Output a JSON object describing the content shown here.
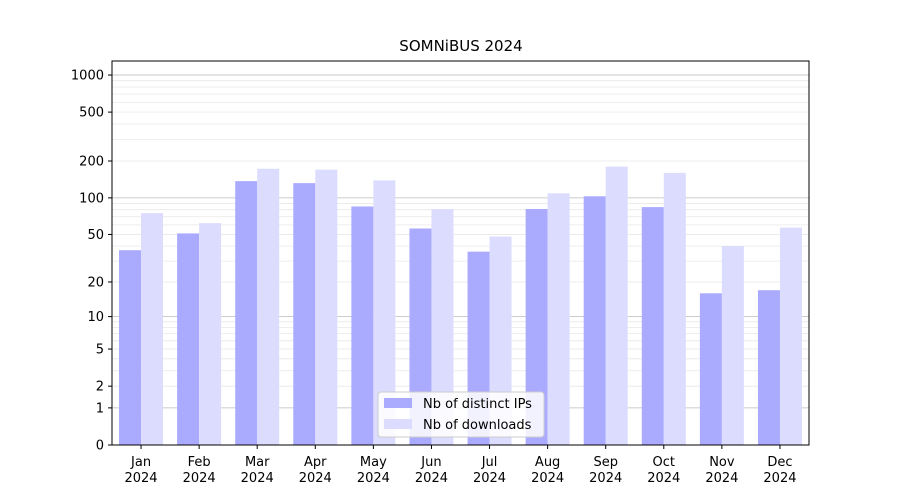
{
  "chart_data": {
    "type": "bar",
    "title": "SOMNiBUS 2024",
    "xlabel": "",
    "ylabel": "",
    "yscale": "symlog",
    "ylim": [
      0,
      1300
    ],
    "yticks": [
      0,
      1,
      2,
      5,
      10,
      20,
      50,
      100,
      200,
      500,
      1000
    ],
    "grid": true,
    "legend_position": "bottom-center",
    "categories": [
      [
        "Jan",
        "2024"
      ],
      [
        "Feb",
        "2024"
      ],
      [
        "Mar",
        "2024"
      ],
      [
        "Apr",
        "2024"
      ],
      [
        "May",
        "2024"
      ],
      [
        "Jun",
        "2024"
      ],
      [
        "Jul",
        "2024"
      ],
      [
        "Aug",
        "2024"
      ],
      [
        "Sep",
        "2024"
      ],
      [
        "Oct",
        "2024"
      ],
      [
        "Nov",
        "2024"
      ],
      [
        "Dec",
        "2024"
      ]
    ],
    "series": [
      {
        "name": "Nb of distinct IPs",
        "color": "#aaaaff",
        "values": [
          37,
          51,
          137,
          132,
          85,
          56,
          36,
          81,
          103,
          84,
          16,
          17
        ]
      },
      {
        "name": "Nb of downloads",
        "color": "#dcdcff",
        "values": [
          75,
          62,
          173,
          170,
          139,
          81,
          48,
          109,
          180,
          160,
          40,
          57
        ]
      }
    ]
  }
}
